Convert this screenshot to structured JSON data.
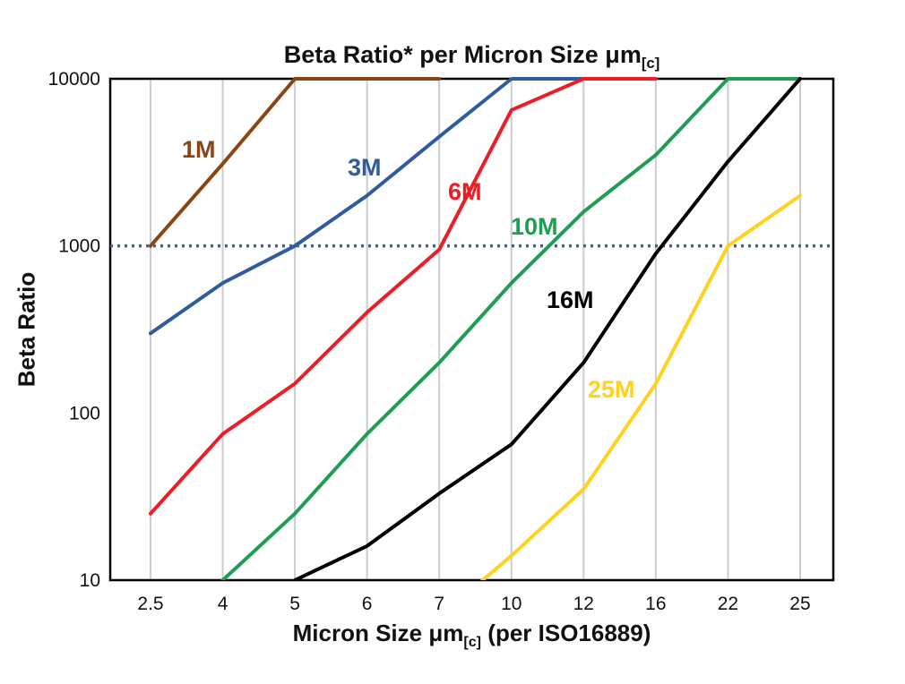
{
  "chart": {
    "title_main": "Beta Ratio* per Micron Size μm",
    "title_sub": "[c]",
    "ylabel": "Beta Ratio",
    "xlabel_pre": "Micron Size μm",
    "xlabel_sub": "[c]",
    "xlabel_post": " (per ISO16889)"
  },
  "chart_data": {
    "type": "line",
    "title": "Beta Ratio* per Micron Size μm[c]",
    "xlabel": "Micron Size μm[c] (per ISO16889)",
    "ylabel": "Beta Ratio",
    "x_categories": [
      "2.5",
      "4",
      "5",
      "6",
      "7",
      "10",
      "12",
      "16",
      "22",
      "25"
    ],
    "y_ticks": [
      "10",
      "100",
      "1000",
      "10000"
    ],
    "y_scale": "log",
    "ylim": [
      10,
      10000
    ],
    "grid": "vertical-only",
    "gridline_color": "#cccccc",
    "reference_line": {
      "value": 1000,
      "style": "dotted",
      "color": "#3a5bc7"
    },
    "series": [
      {
        "name": "1M",
        "color": "#8b4513",
        "points": [
          [
            "2.5",
            1000
          ],
          [
            "4",
            3100
          ],
          [
            "5",
            10000
          ],
          [
            "6",
            10000
          ],
          [
            "7",
            10000
          ]
        ]
      },
      {
        "name": "3M",
        "color": "#2f5b9f",
        "points": [
          [
            "2.5",
            300
          ],
          [
            "4",
            600
          ],
          [
            "5",
            1000
          ],
          [
            "6",
            2000
          ],
          [
            "7",
            4500
          ],
          [
            "10",
            10000
          ],
          [
            "12",
            10000
          ]
        ]
      },
      {
        "name": "6M",
        "color": "#ee1c25",
        "points": [
          [
            "2.5",
            25
          ],
          [
            "4",
            75
          ],
          [
            "5",
            150
          ],
          [
            "6",
            400
          ],
          [
            "7",
            950
          ],
          [
            "10",
            6500
          ],
          [
            "12",
            10000
          ],
          [
            "16",
            10000
          ]
        ]
      },
      {
        "name": "10M",
        "color": "#1e9d53",
        "points": [
          [
            "4",
            10
          ],
          [
            "5",
            25
          ],
          [
            "6",
            75
          ],
          [
            "7",
            200
          ],
          [
            "10",
            600
          ],
          [
            "12",
            1600
          ],
          [
            "16",
            3500
          ],
          [
            "22",
            10000
          ],
          [
            "25",
            10000
          ]
        ]
      },
      {
        "name": "16M",
        "color": "#000000",
        "points": [
          [
            "5",
            10
          ],
          [
            "6",
            16
          ],
          [
            "7",
            33
          ],
          [
            "10",
            65
          ],
          [
            "12",
            200
          ],
          [
            "16",
            900
          ],
          [
            "22",
            3200
          ],
          [
            "25",
            10000
          ]
        ]
      },
      {
        "name": "25M",
        "color": "#ffd21f",
        "points": [
          [
            "7",
            6
          ],
          [
            "10",
            14
          ],
          [
            "12",
            35
          ],
          [
            "16",
            150
          ],
          [
            "22",
            1000
          ],
          [
            "25",
            2000
          ]
        ]
      }
    ]
  }
}
